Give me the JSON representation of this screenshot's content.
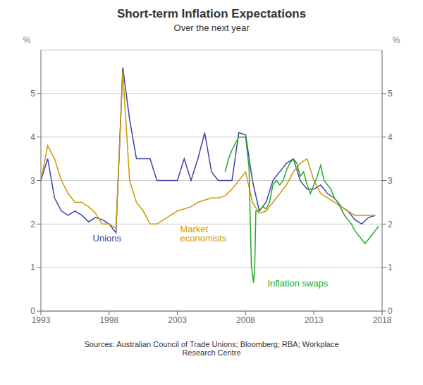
{
  "chart_data": {
    "type": "line",
    "title": "Short-term Inflation Expectations",
    "subtitle": "Over the next year",
    "ylabel": "%",
    "y2label": "%",
    "source": "Sources: Australian Council of Trade Unions; Bloomberg; RBA; Workplace\nResearch Centre",
    "xlim": [
      1993,
      2018
    ],
    "xticks": [
      1993,
      1998,
      2003,
      2008,
      2013,
      2018
    ],
    "ylim": [
      0,
      6
    ],
    "yticks": [
      0,
      1,
      2,
      3,
      4,
      5
    ],
    "y2lim": [
      0,
      6
    ],
    "y2ticks": [
      0,
      1,
      2,
      3,
      4,
      5
    ],
    "grid": true,
    "series": [
      {
        "name": "Unions",
        "color": "#4040aa",
        "x": [
          1993.0,
          1993.5,
          1994.0,
          1994.5,
          1995.0,
          1995.5,
          1996.0,
          1996.5,
          1997.0,
          1997.5,
          1998.0,
          1998.5,
          1999.0,
          1999.5,
          2000.0,
          2000.5,
          2001.0,
          2001.5,
          2002.0,
          2002.5,
          2003.0,
          2003.5,
          2004.0,
          2004.5,
          2005.0,
          2005.5,
          2006.0,
          2006.5,
          2007.0,
          2007.5,
          2008.0,
          2008.5,
          2009.0,
          2009.5,
          2010.0,
          2010.5,
          2011.0,
          2011.5,
          2012.0,
          2012.5,
          2013.0,
          2013.5,
          2014.0,
          2014.5,
          2015.0,
          2015.5,
          2016.0,
          2016.5,
          2017.0,
          2017.5
        ],
        "values": [
          3.0,
          3.5,
          2.6,
          2.3,
          2.2,
          2.3,
          2.2,
          2.05,
          2.15,
          2.1,
          2.0,
          1.8,
          5.6,
          4.4,
          3.5,
          3.5,
          3.5,
          3.0,
          3.0,
          3.0,
          3.0,
          3.5,
          3.0,
          3.5,
          4.1,
          3.2,
          3.0,
          3.0,
          3.0,
          4.1,
          4.05,
          3.0,
          2.3,
          2.5,
          3.0,
          3.2,
          3.4,
          3.5,
          3.0,
          2.8,
          2.8,
          2.9,
          2.7,
          2.6,
          2.4,
          2.3,
          2.1,
          2.0,
          2.15,
          2.2
        ]
      },
      {
        "name": "Market\neconomists",
        "color": "#cc9900",
        "x": [
          1993.0,
          1993.5,
          1994.0,
          1994.5,
          1995.0,
          1995.5,
          1996.0,
          1996.5,
          1997.0,
          1997.5,
          1998.0,
          1998.5,
          1999.0,
          1999.5,
          2000.0,
          2000.5,
          2001.0,
          2001.5,
          2002.0,
          2002.5,
          2003.0,
          2003.5,
          2004.0,
          2004.5,
          2005.0,
          2005.5,
          2006.0,
          2006.5,
          2007.0,
          2007.5,
          2008.0,
          2008.5,
          2009.0,
          2009.5,
          2010.0,
          2010.5,
          2011.0,
          2011.5,
          2012.0,
          2012.5,
          2013.0,
          2013.5,
          2014.0,
          2014.5,
          2015.0,
          2015.5,
          2016.0,
          2016.5,
          2017.0,
          2017.5
        ],
        "values": [
          3.0,
          3.8,
          3.5,
          3.0,
          2.7,
          2.5,
          2.5,
          2.4,
          2.25,
          2.0,
          2.0,
          1.9,
          5.5,
          3.0,
          2.5,
          2.3,
          2.0,
          2.0,
          2.1,
          2.2,
          2.3,
          2.35,
          2.4,
          2.5,
          2.55,
          2.6,
          2.6,
          2.65,
          2.8,
          3.0,
          3.2,
          2.5,
          2.25,
          2.3,
          2.5,
          2.7,
          2.9,
          3.2,
          3.4,
          3.5,
          3.0,
          2.7,
          2.6,
          2.5,
          2.4,
          2.3,
          2.2,
          2.2,
          2.2,
          2.2
        ]
      },
      {
        "name": "Inflation swaps",
        "color": "#22aa22",
        "x": [
          2006.5,
          2006.75,
          2007.0,
          2007.25,
          2007.5,
          2007.75,
          2008.0,
          2008.25,
          2008.42,
          2008.58,
          2008.67,
          2008.75,
          2009.0,
          2009.25,
          2009.5,
          2009.75,
          2010.0,
          2010.25,
          2010.5,
          2010.75,
          2011.0,
          2011.25,
          2011.5,
          2011.75,
          2012.0,
          2012.25,
          2012.5,
          2012.75,
          2013.0,
          2013.25,
          2013.5,
          2013.75,
          2014.0,
          2014.25,
          2014.5,
          2014.75,
          2015.0,
          2015.25,
          2015.5,
          2015.75,
          2016.0,
          2016.25,
          2016.5,
          2016.75,
          2017.0,
          2017.25,
          2017.5,
          2017.75
        ],
        "values": [
          3.2,
          3.5,
          3.7,
          3.85,
          4.0,
          4.0,
          4.0,
          3.3,
          1.05,
          0.65,
          1.05,
          2.3,
          2.3,
          2.4,
          2.35,
          2.5,
          2.9,
          3.0,
          2.9,
          3.0,
          3.25,
          3.4,
          3.5,
          3.4,
          3.1,
          3.2,
          2.9,
          2.7,
          2.9,
          3.1,
          3.35,
          3.0,
          2.9,
          2.8,
          2.6,
          2.5,
          2.35,
          2.2,
          2.1,
          2.0,
          1.85,
          1.75,
          1.65,
          1.55,
          1.65,
          1.75,
          1.85,
          1.95
        ]
      }
    ],
    "annotations": [
      {
        "text": "Unions",
        "x": 1996.8,
        "y": 1.55,
        "color": "#4040aa"
      },
      {
        "text": "Market\neconomists",
        "x": 2003.2,
        "y": 1.55,
        "color": "#cc9900"
      },
      {
        "text": "Inflation swaps",
        "x": 2009.6,
        "y": 0.52,
        "color": "#22aa22"
      }
    ]
  }
}
